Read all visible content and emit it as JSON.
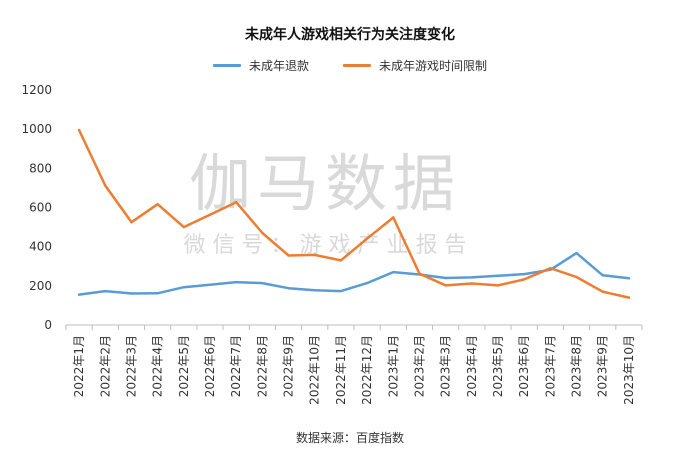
{
  "title": "未成年人游戏相关行为关注度变化",
  "source": "数据来源：百度指数",
  "watermark": {
    "main": "伽马数据",
    "sub": "微 信 号 ： 游 戏 产 业 报 告"
  },
  "colors": {
    "series_1": "#5b9bd5",
    "series_2": "#ed7d31",
    "axis": "#bfbfbf",
    "tick_text": "#333333"
  },
  "chart_data": {
    "type": "line",
    "title": "未成年人游戏相关行为关注度变化",
    "xlabel": "",
    "ylabel": "",
    "ylim": [
      0,
      1200
    ],
    "yticks": [
      0,
      200,
      400,
      600,
      800,
      1000,
      1200
    ],
    "grid": false,
    "legend_position": "top",
    "categories": [
      "2022年1月",
      "2022年2月",
      "2022年3月",
      "2022年4月",
      "2022年5月",
      "2022年6月",
      "2022年7月",
      "2022年8月",
      "2022年9月",
      "2022年10月",
      "2022年11月",
      "2022年12月",
      "2023年1月",
      "2023年2月",
      "2023年3月",
      "2023年4月",
      "2023年5月",
      "2023年6月",
      "2023年7月",
      "2023年8月",
      "2023年9月",
      "2023年10月"
    ],
    "series": [
      {
        "name": "未成年退款",
        "color": "#5b9bd5",
        "values": [
          155,
          173,
          161,
          162,
          193,
          206,
          219,
          214,
          188,
          177,
          173,
          214,
          270,
          258,
          240,
          243,
          251,
          260,
          282,
          367,
          254,
          239
        ]
      },
      {
        "name": "未成年游戏时间限制",
        "color": "#ed7d31",
        "values": [
          995,
          712,
          525,
          617,
          500,
          563,
          627,
          470,
          355,
          358,
          330,
          441,
          549,
          262,
          202,
          212,
          202,
          233,
          290,
          245,
          170,
          140
        ]
      }
    ]
  }
}
